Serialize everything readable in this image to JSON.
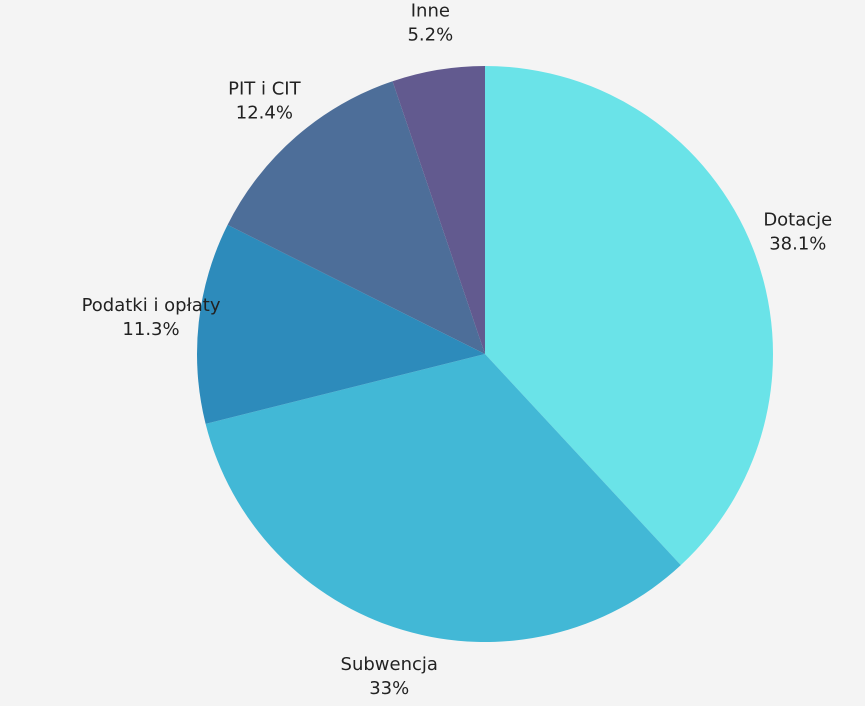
{
  "chart_data": {
    "type": "pie",
    "categories": [
      "Dotacje",
      "Subwencja",
      "Podatki i opłaty",
      "PIT i CIT",
      "Inne"
    ],
    "values": [
      38.1,
      33,
      11.3,
      12.4,
      5.2
    ],
    "value_labels": [
      "38.1%",
      "33%",
      "11.3%",
      "12.4%",
      "5.2%"
    ],
    "colors": [
      "#6ae3e8",
      "#42b8d6",
      "#2d8bbb",
      "#4d6e99",
      "#625a8f"
    ]
  }
}
